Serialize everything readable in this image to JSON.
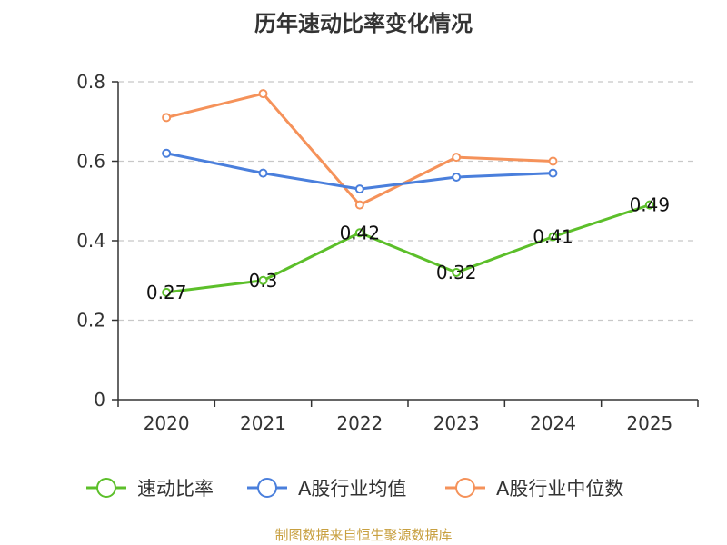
{
  "chart_data": {
    "type": "line",
    "title": "历年速动比率变化情况",
    "categories": [
      "2020",
      "2021",
      "2022",
      "2023",
      "2024",
      "2025"
    ],
    "ylim": [
      0,
      0.8
    ],
    "yticks": [
      0,
      0.2,
      0.4,
      0.6,
      0.8
    ],
    "ytick_labels": [
      "0",
      "0.2",
      "0.4",
      "0.6",
      "0.8"
    ],
    "grid": true,
    "legend_position": "bottom",
    "series": [
      {
        "name": "速动比率",
        "color": "#5cbf2a",
        "values": [
          0.27,
          0.3,
          0.42,
          0.32,
          0.41,
          0.49
        ],
        "labels": [
          "0.27",
          "0.3",
          "0.42",
          "0.32",
          "0.41",
          "0.49"
        ]
      },
      {
        "name": "A股行业均值",
        "color": "#4a7fdc",
        "values": [
          0.62,
          0.57,
          0.53,
          0.56,
          0.57,
          null
        ]
      },
      {
        "name": "A股行业中位数",
        "color": "#f5925a",
        "values": [
          0.71,
          0.77,
          0.49,
          0.61,
          0.6,
          null
        ]
      }
    ]
  },
  "source": "制图数据来自恒生聚源数据库"
}
